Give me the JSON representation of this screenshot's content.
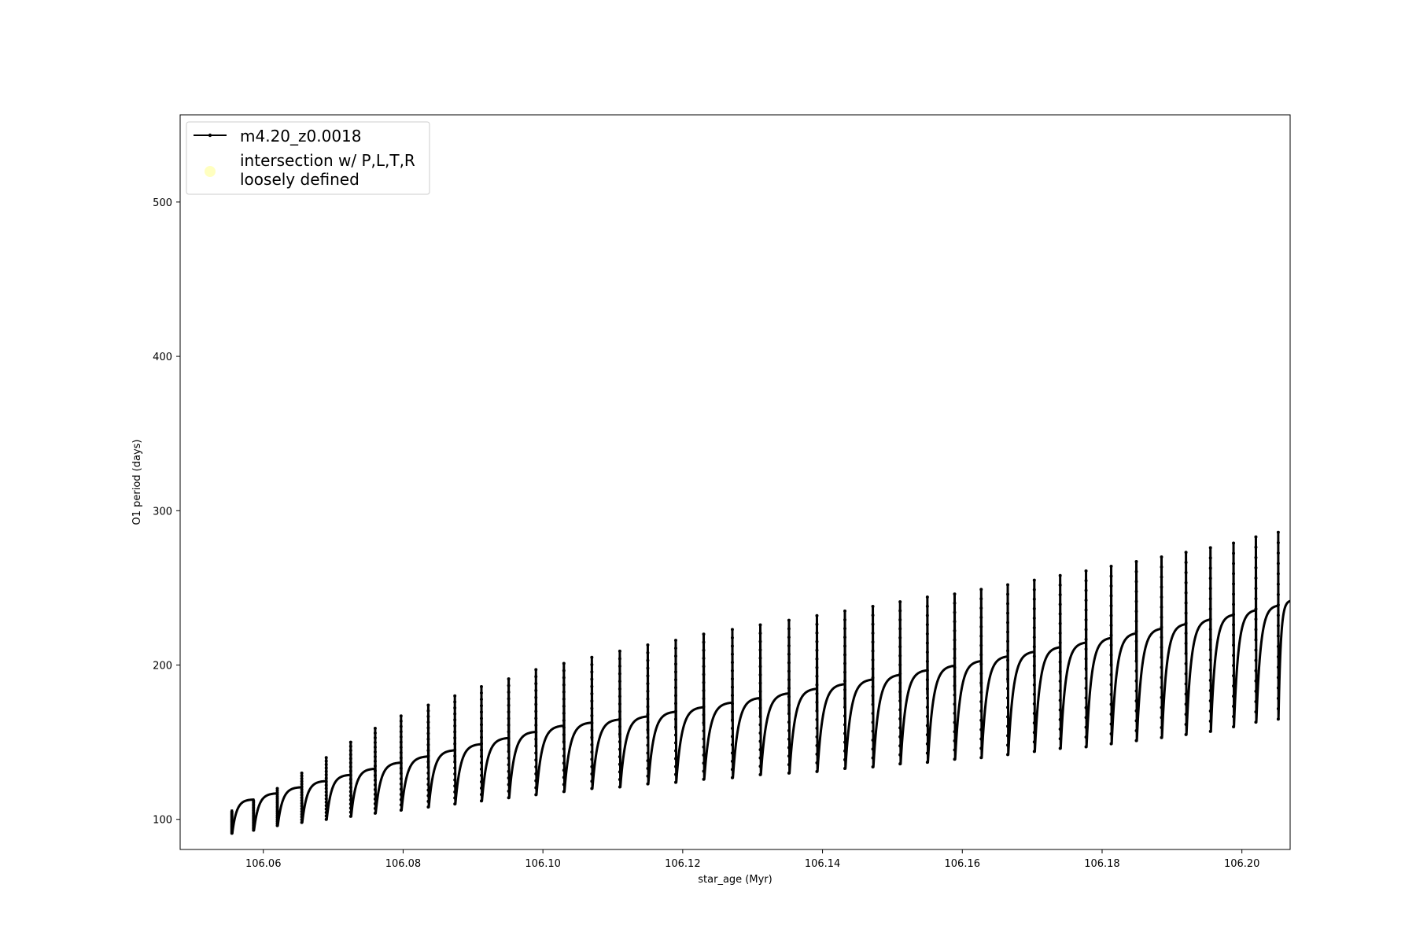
{
  "chart_data": {
    "type": "line",
    "title": "",
    "xlabel": "star_age (Myr)",
    "ylabel": "O1 period (days)",
    "xlim": [
      106.0481,
      106.2069
    ],
    "ylim": [
      80.5,
      556.5
    ],
    "xticks": [
      106.06,
      106.08,
      106.1,
      106.12,
      106.14,
      106.16,
      106.18,
      106.2
    ],
    "xtick_labels": [
      "106.06",
      "106.08",
      "106.10",
      "106.12",
      "106.14",
      "106.16",
      "106.18",
      "106.20"
    ],
    "yticks": [
      100,
      200,
      300,
      400,
      500
    ],
    "ytick_labels": [
      "100",
      "200",
      "300",
      "400",
      "500"
    ],
    "grid": false,
    "legend_position": "top-left",
    "legend": [
      {
        "label": "m4.20_z0.0018",
        "marker": "line-with-dots",
        "color": "#000000"
      },
      {
        "label_lines": [
          "intersection w/ P,L,T,R",
          "loosely defined"
        ],
        "marker": "circle",
        "color": "#ffffc0"
      }
    ],
    "series": [
      {
        "name": "m4.20_z0.0018",
        "color": "#000000",
        "description_points": "cycle start ages and envelope values estimated from the plot",
        "cycles": [
          {
            "x_start": 106.0555,
            "spike": 105,
            "trough": 91,
            "plateau": 113
          },
          {
            "x_start": 106.0586,
            "spike": 112,
            "trough": 93,
            "plateau": 117
          },
          {
            "x_start": 106.062,
            "spike": 120,
            "trough": 96,
            "plateau": 121
          },
          {
            "x_start": 106.0655,
            "spike": 130,
            "trough": 98,
            "plateau": 125
          },
          {
            "x_start": 106.069,
            "spike": 140,
            "trough": 100,
            "plateau": 129
          },
          {
            "x_start": 106.0725,
            "spike": 150,
            "trough": 102,
            "plateau": 133
          },
          {
            "x_start": 106.076,
            "spike": 159,
            "trough": 104,
            "plateau": 137
          },
          {
            "x_start": 106.0797,
            "spike": 167,
            "trough": 106,
            "plateau": 141
          },
          {
            "x_start": 106.0836,
            "spike": 174,
            "trough": 108,
            "plateau": 145
          },
          {
            "x_start": 106.0874,
            "spike": 180,
            "trough": 110,
            "plateau": 149
          },
          {
            "x_start": 106.0912,
            "spike": 186,
            "trough": 112,
            "plateau": 153
          },
          {
            "x_start": 106.0951,
            "spike": 191,
            "trough": 114,
            "plateau": 157
          },
          {
            "x_start": 106.099,
            "spike": 197,
            "trough": 116,
            "plateau": 161
          },
          {
            "x_start": 106.103,
            "spike": 201,
            "trough": 118,
            "plateau": 163
          },
          {
            "x_start": 106.107,
            "spike": 205,
            "trough": 120,
            "plateau": 165
          },
          {
            "x_start": 106.111,
            "spike": 209,
            "trough": 121,
            "plateau": 167
          },
          {
            "x_start": 106.115,
            "spike": 213,
            "trough": 123,
            "plateau": 170
          },
          {
            "x_start": 106.119,
            "spike": 216,
            "trough": 124,
            "plateau": 173
          },
          {
            "x_start": 106.123,
            "spike": 220,
            "trough": 126,
            "plateau": 176
          },
          {
            "x_start": 106.1271,
            "spike": 223,
            "trough": 127,
            "plateau": 179
          },
          {
            "x_start": 106.1311,
            "spike": 226,
            "trough": 129,
            "plateau": 182
          },
          {
            "x_start": 106.1352,
            "spike": 229,
            "trough": 130,
            "plateau": 185
          },
          {
            "x_start": 106.1392,
            "spike": 232,
            "trough": 131,
            "plateau": 188
          },
          {
            "x_start": 106.1432,
            "spike": 235,
            "trough": 133,
            "plateau": 191
          },
          {
            "x_start": 106.1472,
            "spike": 238,
            "trough": 134,
            "plateau": 194
          },
          {
            "x_start": 106.1511,
            "spike": 241,
            "trough": 136,
            "plateau": 197
          },
          {
            "x_start": 106.155,
            "spike": 244,
            "trough": 137,
            "plateau": 200
          },
          {
            "x_start": 106.1589,
            "spike": 246,
            "trough": 139,
            "plateau": 203
          },
          {
            "x_start": 106.1627,
            "spike": 249,
            "trough": 140,
            "plateau": 206
          },
          {
            "x_start": 106.1665,
            "spike": 252,
            "trough": 142,
            "plateau": 209
          },
          {
            "x_start": 106.1703,
            "spike": 255,
            "trough": 144,
            "plateau": 212
          },
          {
            "x_start": 106.174,
            "spike": 258,
            "trough": 146,
            "plateau": 215
          },
          {
            "x_start": 106.1777,
            "spike": 261,
            "trough": 147,
            "plateau": 218
          },
          {
            "x_start": 106.1813,
            "spike": 264,
            "trough": 149,
            "plateau": 221
          },
          {
            "x_start": 106.1849,
            "spike": 267,
            "trough": 151,
            "plateau": 224
          },
          {
            "x_start": 106.1885,
            "spike": 270,
            "trough": 153,
            "plateau": 227
          },
          {
            "x_start": 106.192,
            "spike": 273,
            "trough": 155,
            "plateau": 230
          },
          {
            "x_start": 106.1955,
            "spike": 276,
            "trough": 157,
            "plateau": 233
          },
          {
            "x_start": 106.1988,
            "spike": 279,
            "trough": 160,
            "plateau": 236
          },
          {
            "x_start": 106.202,
            "spike": 283,
            "trough": 163,
            "plateau": 239
          },
          {
            "x_start": 106.2052,
            "spike": 286,
            "trough": 165,
            "plateau": 242
          }
        ]
      }
    ]
  }
}
